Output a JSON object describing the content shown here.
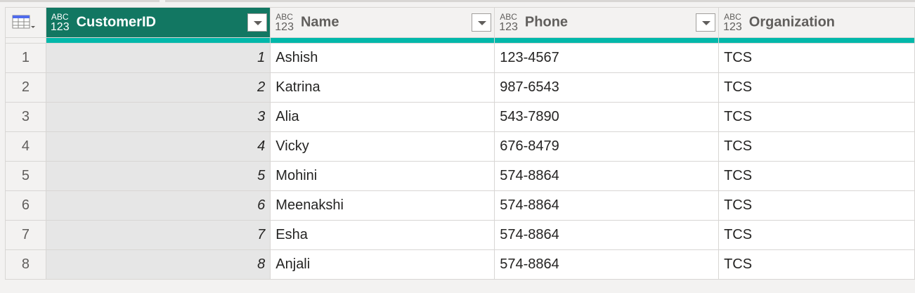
{
  "table": {
    "columns": [
      {
        "name": "CustomerID",
        "type": "ABC 123",
        "selected": true
      },
      {
        "name": "Name",
        "type": "ABC 123"
      },
      {
        "name": "Phone",
        "type": "ABC 123"
      },
      {
        "name": "Organization",
        "type": "ABC 123"
      }
    ],
    "column_quality_color": "#01b8aa",
    "selected_header_color": "#127762",
    "rows": [
      {
        "n": "1",
        "id": "1",
        "name": "Ashish",
        "phone": "123-4567",
        "org": "TCS"
      },
      {
        "n": "2",
        "id": "2",
        "name": "Katrina",
        "phone": "987-6543",
        "org": "TCS"
      },
      {
        "n": "3",
        "id": "3",
        "name": "Alia",
        "phone": "543-7890",
        "org": "TCS"
      },
      {
        "n": "4",
        "id": "4",
        "name": "Vicky",
        "phone": "676-8479",
        "org": "TCS"
      },
      {
        "n": "5",
        "id": "5",
        "name": "Mohini",
        "phone": "574-8864",
        "org": "TCS"
      },
      {
        "n": "6",
        "id": "6",
        "name": "Meenakshi",
        "phone": "574-8864",
        "org": "TCS"
      },
      {
        "n": "7",
        "id": "7",
        "name": "Esha",
        "phone": "574-8864",
        "org": "TCS"
      },
      {
        "n": "8",
        "id": "8",
        "name": "Anjali",
        "phone": "574-8864",
        "org": "TCS"
      }
    ]
  }
}
